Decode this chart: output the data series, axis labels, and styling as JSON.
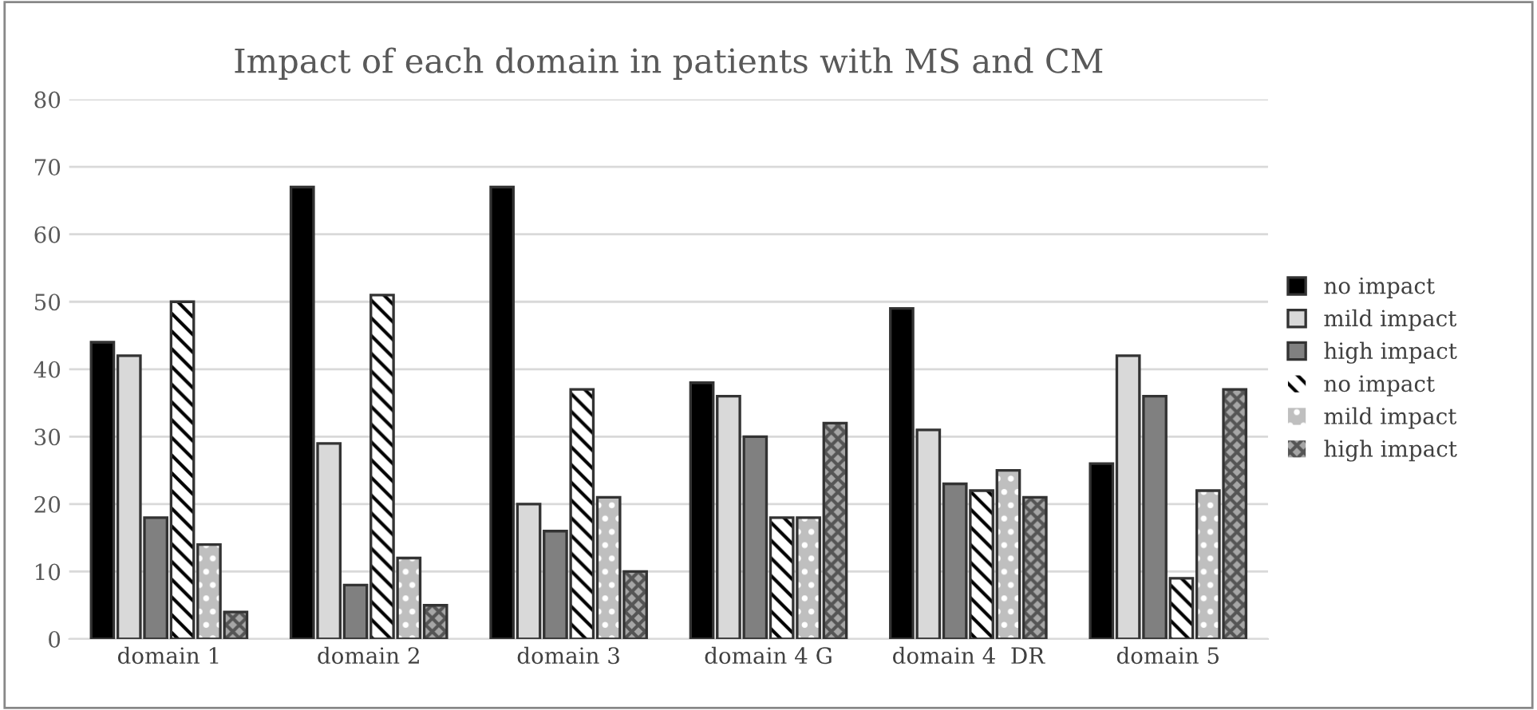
{
  "chart_data": {
    "type": "bar",
    "title": "Impact of each domain in patients with MS and CM",
    "categories": [
      "domain 1",
      "domain 2",
      "domain 3",
      "domain 4 G",
      "domain 4  DR",
      "domain 5"
    ],
    "series": [
      {
        "name": "no impact",
        "color": "#000000",
        "values": [
          44,
          67,
          67,
          38,
          49,
          26
        ]
      },
      {
        "name": "mild impact",
        "color": "#d9d9d9",
        "values": [
          42,
          29,
          20,
          36,
          31,
          42
        ]
      },
      {
        "name": "high impact",
        "color": "#808080",
        "values": [
          18,
          8,
          16,
          30,
          23,
          36
        ]
      },
      {
        "name": "no impact",
        "color": "#ffffff",
        "values": [
          50,
          51,
          37,
          18,
          22,
          9
        ]
      },
      {
        "name": "mild impact",
        "color": "#bfbfbf",
        "values": [
          14,
          12,
          21,
          18,
          25,
          22
        ]
      },
      {
        "name": "high impact",
        "color": "#a6a6a6",
        "values": [
          4,
          5,
          10,
          32,
          21,
          37
        ]
      }
    ],
    "ylim": [
      0,
      80
    ],
    "yticks": [
      0,
      10,
      20,
      30,
      40,
      50,
      60,
      70,
      80
    ],
    "grid": "y",
    "legend": "right"
  }
}
